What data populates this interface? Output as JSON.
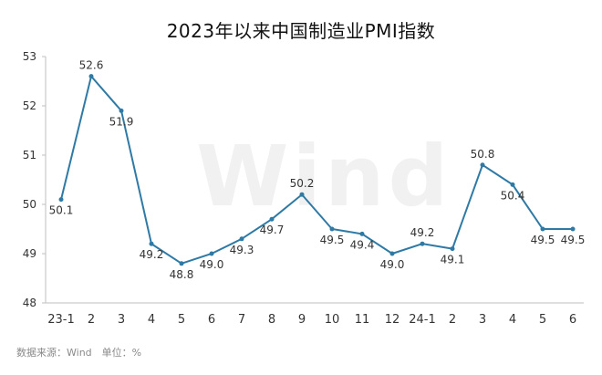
{
  "title": "2023年以来中国制造业PMI指数",
  "source": "数据来源：Wind　单位：%",
  "watermark": "Wind",
  "chart_data": {
    "type": "line",
    "title": "2023年以来中国制造业PMI指数",
    "categories": [
      "23-1",
      "2",
      "3",
      "4",
      "5",
      "6",
      "7",
      "8",
      "9",
      "10",
      "11",
      "12",
      "24-1",
      "2",
      "3",
      "4",
      "5",
      "6"
    ],
    "series": [
      {
        "values": [
          50.1,
          52.6,
          51.9,
          49.2,
          48.8,
          49.0,
          49.3,
          49.7,
          50.2,
          49.5,
          49.4,
          49.0,
          49.2,
          49.1,
          50.8,
          50.4,
          49.5,
          49.5
        ]
      }
    ],
    "value_labels": [
      "50.1",
      "52.6",
      "51.9",
      "49.2",
      "48.8",
      "49.0",
      "49.3",
      "49.7",
      "50.2",
      "49.5",
      "49.4",
      "49.0",
      "49.2",
      "49.1",
      "50.8",
      "50.4",
      "49.5",
      "49.5"
    ],
    "ylim": [
      48,
      53
    ],
    "yticks": [
      "48",
      "49",
      "50",
      "51",
      "52",
      "53"
    ],
    "grid": false,
    "legend": "none",
    "line_color": "#2E7AA5",
    "marker_color": "#2E7AA5"
  }
}
